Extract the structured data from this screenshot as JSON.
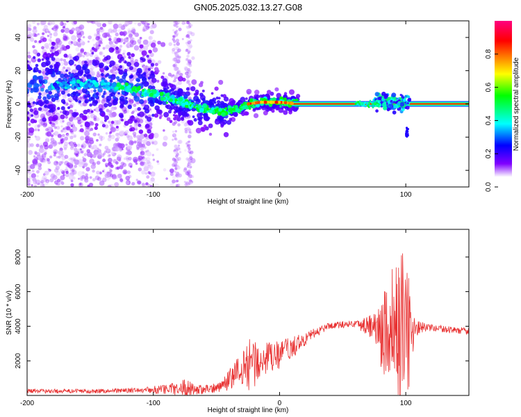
{
  "title": "GN05.2025.032.13.27.G08",
  "chart_data": [
    {
      "type": "heatmap",
      "xlabel": "Height of straight line (km)",
      "ylabel": "Frequency (Hz)",
      "xlim": [
        -200,
        150
      ],
      "ylim": [
        -50,
        50
      ],
      "xticks": [
        -200,
        -100,
        0,
        100
      ],
      "yticks": [
        -40,
        -20,
        0,
        20,
        40
      ],
      "ridge": [
        {
          "x": -175,
          "y": 11
        },
        {
          "x": -150,
          "y": 12
        },
        {
          "x": -125,
          "y": 10
        },
        {
          "x": -110,
          "y": 8
        },
        {
          "x": -95,
          "y": 5
        },
        {
          "x": -80,
          "y": 2
        },
        {
          "x": -65,
          "y": -2
        },
        {
          "x": -50,
          "y": -4
        },
        {
          "x": -42,
          "y": -5
        },
        {
          "x": -35,
          "y": -3
        },
        {
          "x": -25,
          "y": 0
        },
        {
          "x": -15,
          "y": 1
        },
        {
          "x": 0,
          "y": 1
        },
        {
          "x": 15,
          "y": 0
        },
        {
          "x": 60,
          "y": 0
        },
        {
          "x": 85,
          "y": 1
        },
        {
          "x": 95,
          "y": 2
        },
        {
          "x": 102,
          "y": 0
        },
        {
          "x": 150,
          "y": 0
        }
      ],
      "colorbar": {
        "label": "Normalized spectral amplitude",
        "range": [
          0,
          1
        ],
        "ticks": [
          "0.0",
          "0.2",
          "0.4",
          "0.6",
          "0.8"
        ],
        "colors": [
          "#ffffff",
          "#8000ff",
          "#0000ff",
          "#00ffff",
          "#00ff00",
          "#ffff00",
          "#ff8000",
          "#ff0000",
          "#ff00ff"
        ]
      }
    },
    {
      "type": "line",
      "xlabel": "Height of straight line (km)",
      "ylabel": "SNR (10 * v/v)",
      "xlim": [
        -200,
        150
      ],
      "ylim": [
        0,
        9600
      ],
      "xticks": [
        -200,
        -100,
        0,
        100
      ],
      "yticks": [
        2000,
        4000,
        6000,
        8000
      ],
      "color": "#e83030",
      "envelope": [
        {
          "x": -200,
          "mean": 250,
          "amp": 120
        },
        {
          "x": -150,
          "mean": 250,
          "amp": 120
        },
        {
          "x": -110,
          "mean": 300,
          "amp": 150
        },
        {
          "x": -90,
          "mean": 350,
          "amp": 300
        },
        {
          "x": -75,
          "mean": 450,
          "amp": 500
        },
        {
          "x": -60,
          "mean": 300,
          "amp": 250
        },
        {
          "x": -48,
          "mean": 500,
          "amp": 300
        },
        {
          "x": -40,
          "mean": 900,
          "amp": 600
        },
        {
          "x": -30,
          "mean": 1500,
          "amp": 1200
        },
        {
          "x": -22,
          "mean": 1900,
          "amp": 1600
        },
        {
          "x": -15,
          "mean": 2000,
          "amp": 1100
        },
        {
          "x": -5,
          "mean": 2200,
          "amp": 900
        },
        {
          "x": 5,
          "mean": 2500,
          "amp": 800
        },
        {
          "x": 15,
          "mean": 3000,
          "amp": 500
        },
        {
          "x": 25,
          "mean": 3500,
          "amp": 300
        },
        {
          "x": 40,
          "mean": 4050,
          "amp": 200
        },
        {
          "x": 60,
          "mean": 4150,
          "amp": 200
        },
        {
          "x": 75,
          "mean": 4000,
          "amp": 800
        },
        {
          "x": 82,
          "mean": 3500,
          "amp": 2500
        },
        {
          "x": 88,
          "mean": 3800,
          "amp": 3800
        },
        {
          "x": 94,
          "mean": 3500,
          "amp": 4300
        },
        {
          "x": 99,
          "mean": 3600,
          "amp": 5000
        },
        {
          "x": 103,
          "mean": 3500,
          "amp": 3000
        },
        {
          "x": 107,
          "mean": 3900,
          "amp": 500
        },
        {
          "x": 120,
          "mean": 3900,
          "amp": 200
        },
        {
          "x": 150,
          "mean": 3700,
          "amp": 200
        }
      ]
    }
  ]
}
